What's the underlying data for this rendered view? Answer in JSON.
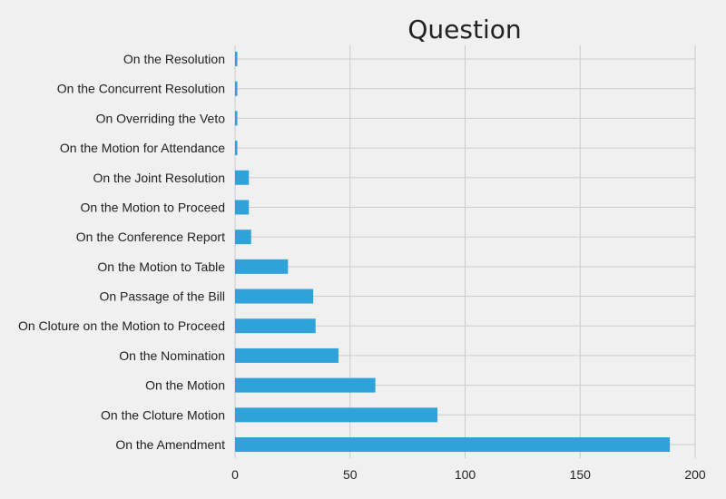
{
  "chart_data": {
    "type": "bar",
    "orientation": "horizontal",
    "title": "Question",
    "xlabel": "",
    "ylabel": "",
    "categories": [
      "On the Amendment",
      "On the Cloture Motion",
      "On the Motion",
      "On the Nomination",
      "On Cloture on the Motion to Proceed",
      "On Passage of the Bill",
      "On the Motion to Table",
      "On the Conference Report",
      "On the Motion to Proceed",
      "On the Joint Resolution",
      "On the Motion for Attendance",
      "On Overriding the Veto",
      "On the Concurrent Resolution",
      "On the Resolution"
    ],
    "values": [
      189,
      88,
      61,
      45,
      35,
      34,
      23,
      7,
      6,
      6,
      1,
      1,
      1,
      1
    ],
    "xlim": [
      0,
      200
    ],
    "xticks": [
      0,
      50,
      100,
      150,
      200
    ],
    "grid": true,
    "bar_color": "#30a2da",
    "background_color": "#f0f0f0",
    "grid_color": "#cbcbcb"
  }
}
